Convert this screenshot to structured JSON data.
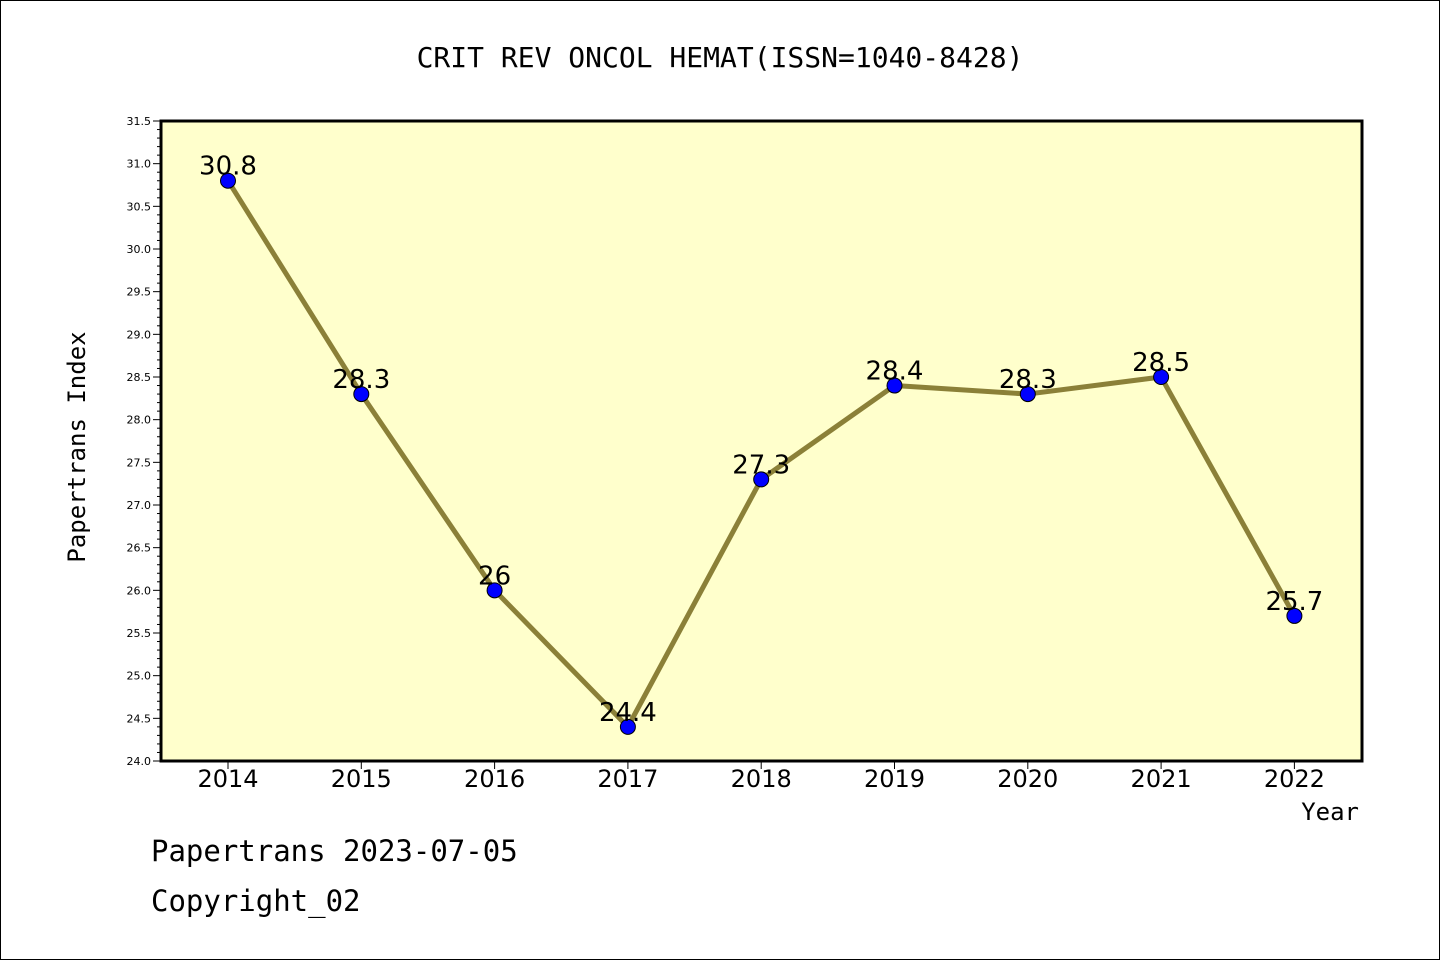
{
  "chart_data": {
    "type": "line",
    "title": "CRIT REV ONCOL HEMAT(ISSN=1040-8428)",
    "xlabel": "Year",
    "ylabel": "Papertrans Index",
    "categories": [
      "2014",
      "2015",
      "2016",
      "2017",
      "2018",
      "2019",
      "2020",
      "2021",
      "2022"
    ],
    "series": [
      {
        "values": [
          30.8,
          28.3,
          26,
          24.4,
          27.3,
          28.4,
          28.3,
          28.5,
          25.7
        ],
        "data_labels": [
          "30.8",
          "28.3",
          "26",
          "24.4",
          "27.3",
          "28.4",
          "28.3",
          "28.5",
          "25.7"
        ]
      }
    ],
    "ylim": [
      24.0,
      31.5
    ],
    "yticks": [
      "24.0",
      "24.5",
      "25.0",
      "25.5",
      "26.0",
      "26.5",
      "27.0",
      "27.5",
      "28.0",
      "28.5",
      "29.0",
      "29.5",
      "30.0",
      "30.5",
      "31.0",
      "31.5"
    ],
    "grid": false,
    "colors": {
      "plot_background": "#ffffcc",
      "line": "#8b8038",
      "marker": "#0000ff"
    }
  },
  "footer": {
    "line1": "Papertrans 2023-07-05",
    "line2": "Copyright_02"
  }
}
